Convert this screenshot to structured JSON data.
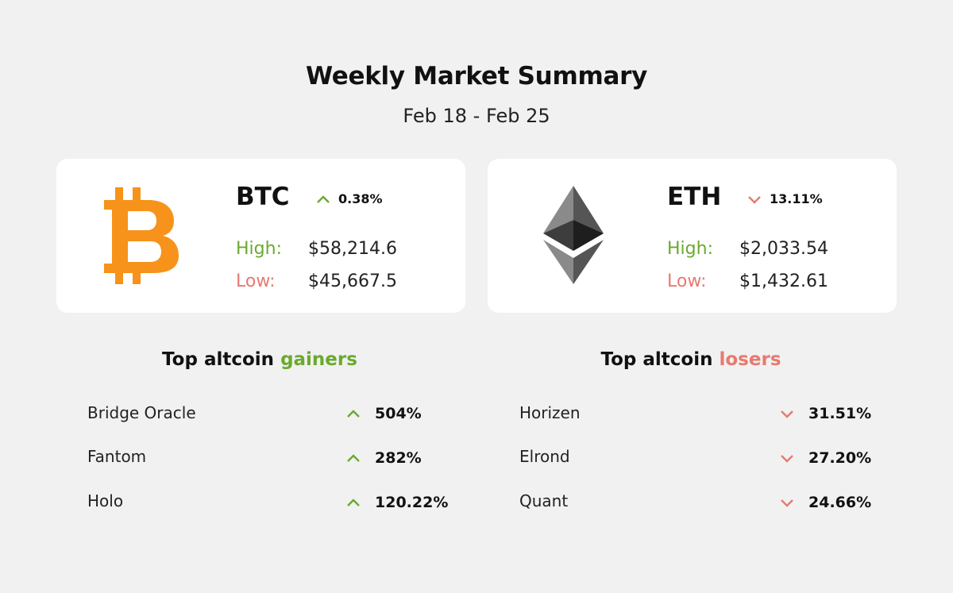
{
  "header": {
    "title": "Weekly Market Summary",
    "date_range": "Feb 18 - Feb 25"
  },
  "colors": {
    "up": "#6aaa2e",
    "down": "#e77a6f",
    "btc_orange": "#f7931a",
    "background": "#f1f1f1"
  },
  "cards": {
    "btc": {
      "icon": "bitcoin-logo",
      "ticker": "BTC",
      "direction": "up",
      "change": "0.38%",
      "high_label": "High:",
      "high": "$58,214.6",
      "low_label": "Low:",
      "low": "$45,667.5"
    },
    "eth": {
      "icon": "ethereum-logo",
      "ticker": "ETH",
      "direction": "down",
      "change": "13.11%",
      "high_label": "High:",
      "high": "$2,033.54",
      "low_label": "Low:",
      "low": "$1,432.61"
    }
  },
  "gainers": {
    "heading_prefix": "Top altcoin ",
    "heading_accent": "gainers",
    "items": [
      {
        "name": "Bridge Oracle",
        "change": "504%"
      },
      {
        "name": "Fantom",
        "change": "282%"
      },
      {
        "name": "Holo",
        "change": "120.22%"
      }
    ]
  },
  "losers": {
    "heading_prefix": "Top altcoin ",
    "heading_accent": "losers",
    "items": [
      {
        "name": "Horizen",
        "change": "31.51%"
      },
      {
        "name": "Elrond",
        "change": "27.20%"
      },
      {
        "name": "Quant",
        "change": "24.66%"
      }
    ]
  }
}
